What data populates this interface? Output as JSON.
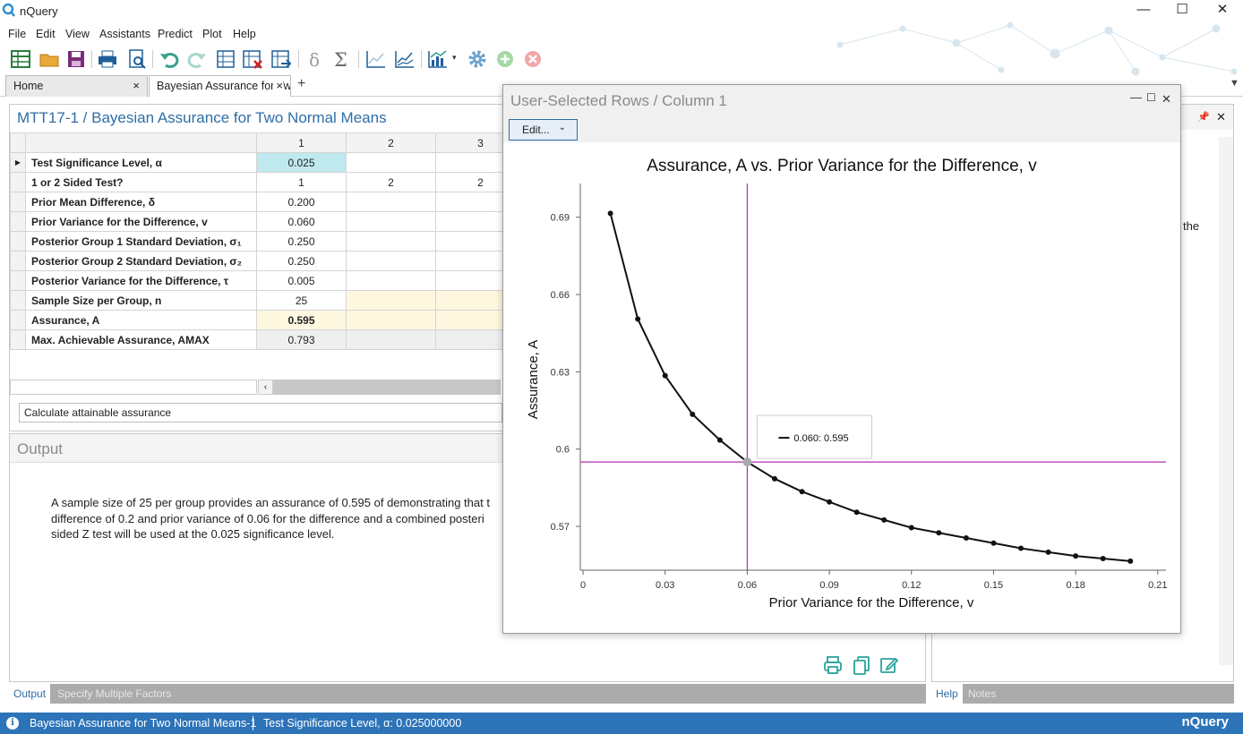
{
  "app": {
    "title": "nQuery",
    "window_controls": [
      "—",
      "☐",
      "✕"
    ]
  },
  "menu": [
    "File",
    "Edit",
    "View",
    "Assistants",
    "Predict",
    "Plot",
    "Help"
  ],
  "tabs": [
    {
      "label": "Home",
      "close": "×"
    },
    {
      "label": "Bayesian Assurance for Two Normal Means",
      "close": "×"
    }
  ],
  "tab_add": "+",
  "document": {
    "title": "MTT17-1 / Bayesian Assurance for Two Normal Means",
    "columns": [
      "1",
      "2",
      "3"
    ],
    "rows": [
      {
        "label": "Test Significance Level, α",
        "values": [
          "0.025",
          "",
          ""
        ]
      },
      {
        "label": "1 or 2 Sided Test?",
        "values": [
          "1",
          "2",
          "2"
        ]
      },
      {
        "label": "Prior Mean Difference, δ",
        "values": [
          "0.200",
          "",
          ""
        ]
      },
      {
        "label": "Prior Variance for the Difference, v",
        "values": [
          "0.060",
          "",
          ""
        ]
      },
      {
        "label": "Posterior Group 1 Standard Deviation, σ₁",
        "values": [
          "0.250",
          "",
          ""
        ]
      },
      {
        "label": "Posterior Group 2 Standard Deviation, σ₂",
        "values": [
          "0.250",
          "",
          ""
        ]
      },
      {
        "label": "Posterior Variance for the Difference, τ",
        "values": [
          "0.005",
          "",
          ""
        ]
      },
      {
        "label": "Sample Size per Group, n",
        "values": [
          "25",
          "",
          ""
        ]
      },
      {
        "label": "Assurance, A",
        "values": [
          "0.595",
          "",
          ""
        ]
      },
      {
        "label": "Max. Achievable Assurance, AMAX",
        "values": [
          "0.793",
          "",
          ""
        ]
      }
    ],
    "calculate_option": "Calculate attainable assurance"
  },
  "output": {
    "title": "Output",
    "text": "A sample size of 25 per group provides an assurance of 0.595 of demonstrating that t\ndifference of 0.2 and prior variance of 0.06 for the difference and a combined posteri\nsided Z test will be used at the 0.025 significance level.",
    "tabs": [
      "Output",
      "Specify Multiple Factors"
    ]
  },
  "right_pane": {
    "visible_text": "the",
    "tabs": [
      "Help",
      "Notes"
    ]
  },
  "status": {
    "left": "Bayesian Assurance for Two Normal Means-1",
    "right": "Test Significance Level, α: 0.025000000",
    "brand": "nQuery"
  },
  "popup": {
    "title": "User-Selected Rows / Column 1",
    "edit_label": "Edit...",
    "controls": [
      "—",
      "☐",
      "✕"
    ]
  },
  "chart_data": {
    "type": "line",
    "title": "Assurance, A vs. Prior Variance for the Difference, v",
    "xlabel": "Prior Variance for the Difference, v",
    "ylabel": "Assurance, A",
    "xlim": [
      -0.001,
      0.213
    ],
    "ylim": [
      0.553,
      0.701
    ],
    "xticks": [
      0,
      0.03,
      0.06,
      0.09,
      0.12,
      0.15,
      0.18,
      0.21
    ],
    "xtick_labels": [
      "0",
      "0.03",
      "0.06",
      "0.09",
      "0.12",
      "0.15",
      "0.18",
      "0.21"
    ],
    "yticks": [
      0.57,
      0.6,
      0.63,
      0.66,
      0.69
    ],
    "ytick_labels": [
      "0.57",
      "0.6",
      "0.63",
      "0.66",
      "0.69"
    ],
    "series": [
      {
        "x": [
          0.01,
          0.02,
          0.03,
          0.04,
          0.05,
          0.06,
          0.07,
          0.08,
          0.09,
          0.1,
          0.11,
          0.12,
          0.13,
          0.14,
          0.15,
          0.16,
          0.17,
          0.18,
          0.19,
          0.2
        ],
        "y": [
          0.6915,
          0.6505,
          0.6285,
          0.6135,
          0.6035,
          0.595,
          0.5885,
          0.5835,
          0.5795,
          0.5755,
          0.5725,
          0.5695,
          0.5675,
          0.5655,
          0.5635,
          0.5615,
          0.56,
          0.5585,
          0.5575,
          0.5565
        ],
        "color": "#111111"
      }
    ],
    "crosshair": {
      "x": 0.06,
      "y": 0.595,
      "color": "#b030b0"
    },
    "tooltip": "0.060: 0.595",
    "grid": false
  },
  "colors": {
    "accent": "#2e6ea6",
    "status_bar": "#2d73b8",
    "highlight_cell": "#bfe8ef",
    "crosshair": "#b030b0"
  },
  "toolbar_icons": [
    "new-sheet-icon",
    "open-folder-icon",
    "save-icon",
    "print-icon",
    "print-preview-icon",
    "undo-icon",
    "redo-icon",
    "insert-rows-icon",
    "delete-column-icon",
    "fill-right-icon",
    "delta-icon",
    "sigma-icon",
    "line-chart-icon",
    "multi-line-chart-icon",
    "bar-chart-icon",
    "settings-icon",
    "add-icon",
    "cancel-icon"
  ]
}
